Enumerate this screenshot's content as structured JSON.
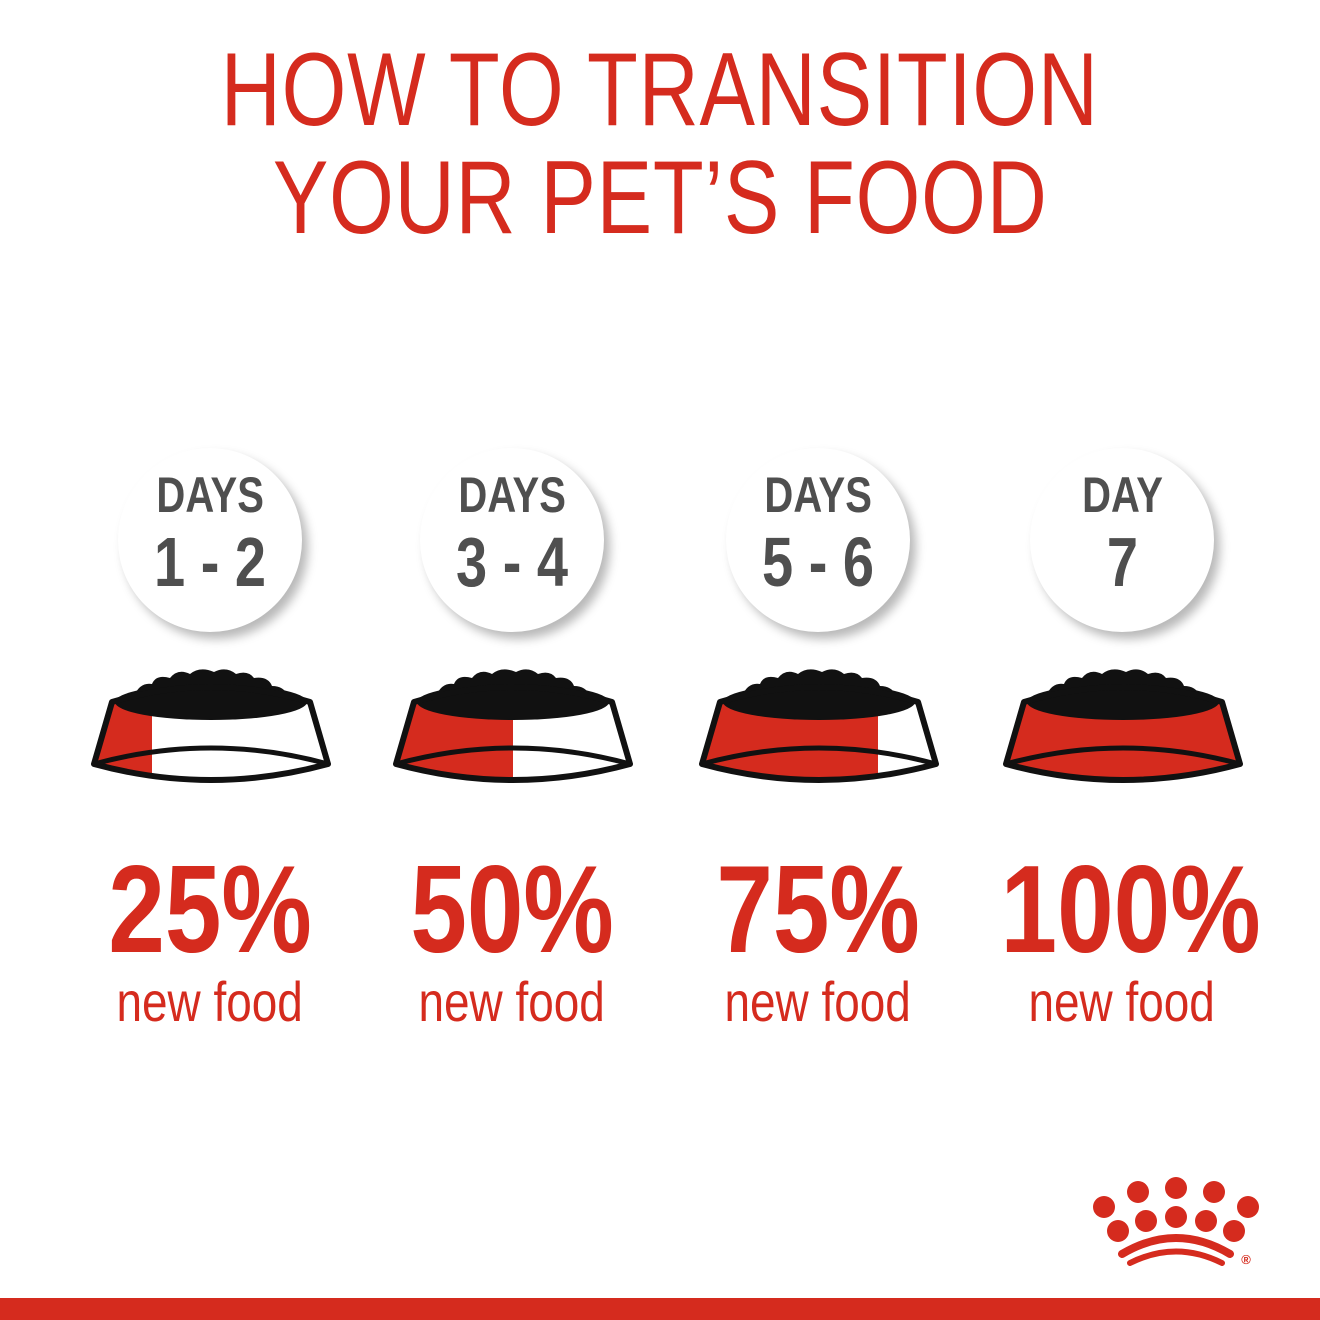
{
  "title": {
    "line1": "HOW TO TRANSITION",
    "line2": "YOUR PET’S FOOD"
  },
  "colors": {
    "brand_red": "#d52b1e",
    "day_text": "#4f4f4f",
    "food": "#111111"
  },
  "steps": [
    {
      "label": "DAYS",
      "days": "1 - 2",
      "percent": "25%",
      "caption": "new food",
      "new_food_fraction": 0.25
    },
    {
      "label": "DAYS",
      "days": "3 - 4",
      "percent": "50%",
      "caption": "new food",
      "new_food_fraction": 0.5
    },
    {
      "label": "DAYS",
      "days": "5 - 6",
      "percent": "75%",
      "caption": "new food",
      "new_food_fraction": 0.75
    },
    {
      "label": "DAY",
      "days": "7",
      "percent": "100%",
      "caption": "new food",
      "new_food_fraction": 1.0
    }
  ],
  "logo": {
    "icon": "royal-canin-crown-logo",
    "mark": "®"
  }
}
